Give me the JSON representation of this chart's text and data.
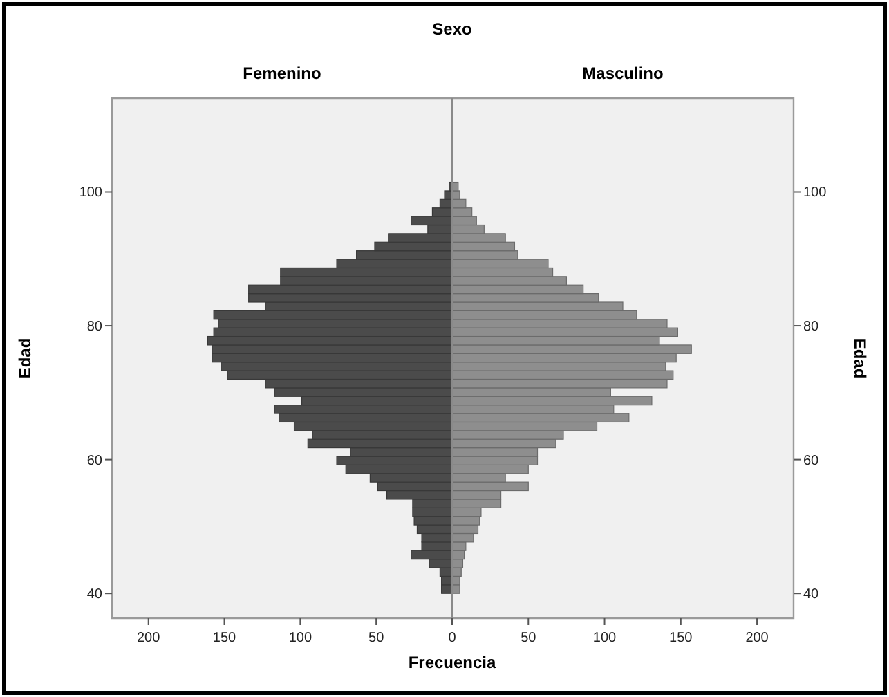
{
  "chart_data": [
    {
      "type": "histogram",
      "orientation": "horizontal",
      "title": "Femenino",
      "annotations": [
        "Sexo"
      ],
      "xlabel": "Frecuencia",
      "ylabel": "Edad",
      "bins": [
        40,
        41.28,
        42.56,
        43.84,
        45.12,
        46.4,
        47.68,
        48.96,
        50.24,
        51.52,
        52.8,
        54.08,
        55.36,
        56.64,
        57.92,
        59.2,
        60.48,
        61.76,
        63.04,
        64.32,
        65.6,
        66.88,
        68.16,
        69.44,
        70.72,
        72,
        73.28,
        74.56,
        75.84,
        77.12,
        78.4,
        79.68,
        80.96,
        82.24,
        83.52,
        84.8,
        86.08,
        87.36,
        88.64,
        89.92,
        91.2,
        92.48,
        93.76,
        95.04,
        96.32,
        97.6,
        98.88,
        100.16,
        101.44
      ],
      "values": [
        7,
        7,
        8,
        15,
        27,
        20,
        20,
        23,
        25,
        26,
        26,
        43,
        49,
        54,
        70,
        76,
        67,
        95,
        92,
        104,
        114,
        117,
        99,
        117,
        123,
        148,
        152,
        158,
        158,
        161,
        157,
        154,
        157,
        123,
        134,
        134,
        113,
        113,
        76,
        63,
        51,
        42,
        16,
        27,
        13,
        8,
        5,
        2
      ],
      "color": "#4b4b4b",
      "xlim": [
        224,
        0
      ],
      "xticks": [
        200,
        150,
        100,
        50
      ],
      "ylim": [
        36.3,
        114
      ],
      "yticks": [
        40,
        60,
        80,
        100
      ]
    },
    {
      "type": "histogram",
      "orientation": "horizontal",
      "title": "Masculino",
      "ylabel": "Edad",
      "bins": [
        40,
        41.28,
        42.56,
        43.84,
        45.12,
        46.4,
        47.68,
        48.96,
        50.24,
        51.52,
        52.8,
        54.08,
        55.36,
        56.64,
        57.92,
        59.2,
        60.48,
        61.76,
        63.04,
        64.32,
        65.6,
        66.88,
        68.16,
        69.44,
        70.72,
        72,
        73.28,
        74.56,
        75.84,
        77.12,
        78.4,
        79.68,
        80.96,
        82.24,
        83.52,
        84.8,
        86.08,
        87.36,
        88.64,
        89.92,
        91.2,
        92.48,
        93.76,
        95.04,
        96.32,
        97.6,
        98.88,
        100.16,
        101.44
      ],
      "values": [
        5,
        5,
        6,
        7,
        8,
        9,
        14,
        17,
        18,
        19,
        32,
        32,
        50,
        35,
        50,
        56,
        56,
        68,
        73,
        95,
        116,
        106,
        131,
        104,
        141,
        145,
        140,
        147,
        157,
        136,
        148,
        141,
        121,
        112,
        96,
        86,
        75,
        66,
        63,
        43,
        41,
        35,
        21,
        16,
        13,
        9,
        5,
        4
      ],
      "color": "#8e8e8e",
      "xlim": [
        0,
        224
      ],
      "xticks": [
        0,
        50,
        100,
        150,
        200
      ],
      "ylim": [
        36.3,
        114
      ],
      "yticks": [
        40,
        60,
        80,
        100
      ]
    }
  ]
}
